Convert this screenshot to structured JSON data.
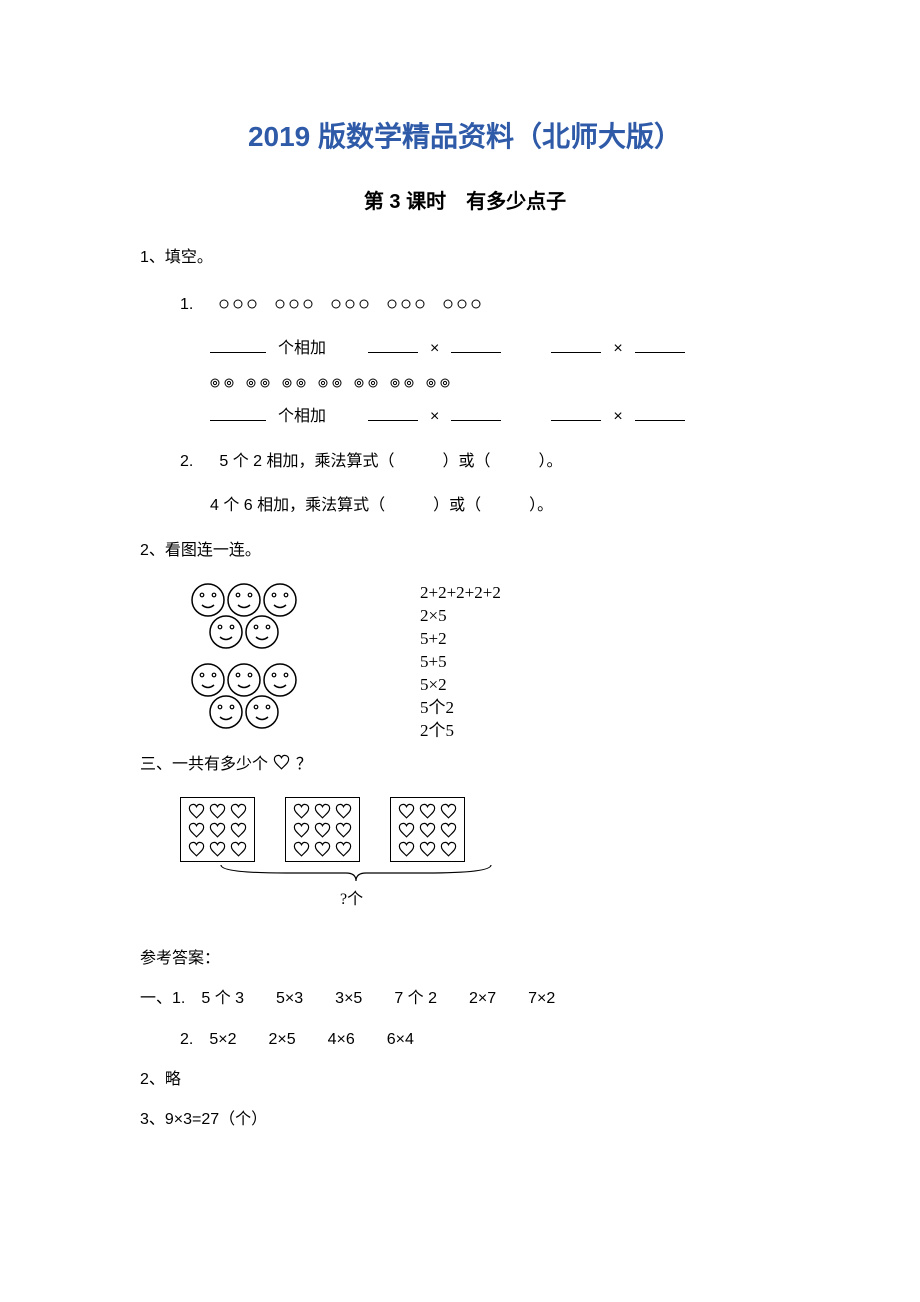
{
  "title_main_color": "#2e5aa8",
  "title_main": "2019 版数学精品资料（北师大版）",
  "title_sub": "第 3 课时　有多少点子",
  "section1": "1、填空。",
  "q1_1": "1.",
  "q1_1_circles_groups": 5,
  "q1_1_circles_per_group": 3,
  "q1_1_line2_a": "个相加",
  "q1_1_pair_groups": 7,
  "q1_1_pair_per_group": 2,
  "q1_1_line4_a": "个相加",
  "q1_2": "2.",
  "q1_2a": "5 个 2 相加，乘法算式（　　　）或（　　　）。",
  "q1_2b": "4 个 6 相加，乘法算式（　　　）或（　　　）。",
  "section2": "2、看图连一连。",
  "match_options": [
    "2+2+2+2+2",
    "2×5",
    "5+2",
    "5+5",
    "5×2",
    "5个2",
    "2个5"
  ],
  "section3_prefix": "三、一共有多少个",
  "section3_suffix": "？",
  "hearts_boxes": 3,
  "hearts_rows": 3,
  "hearts_cols": 3,
  "brace_label": "?个",
  "answers_title": "参考答案：",
  "ans1_1": "一、1.　5 个 3　　5×3　　3×5　　7 个 2　　2×7　　7×2",
  "ans1_2": "2.　5×2　　2×5　　4×6　　6×4",
  "ans2": "2、略",
  "ans3": "3、9×3=27（个）"
}
